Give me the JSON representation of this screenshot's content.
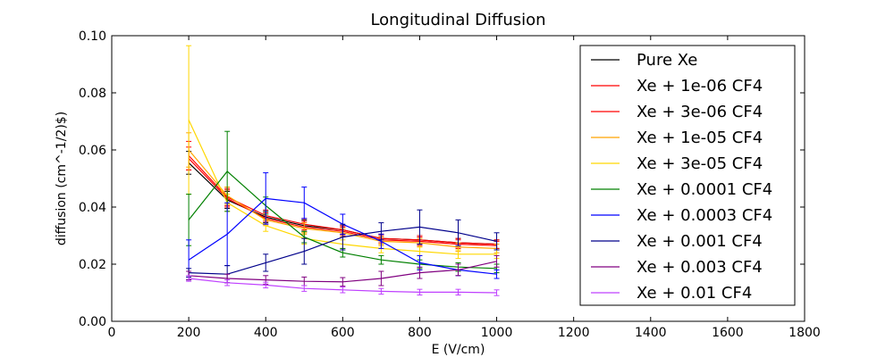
{
  "chart_data": {
    "type": "line",
    "title": "Longitudinal Diffusion",
    "xlabel": "E (V/cm)",
    "ylabel": "diffusion (cm^-1/2)$)",
    "xlim": [
      0,
      1800
    ],
    "ylim": [
      0.0,
      0.1
    ],
    "xticks": [
      "0",
      "200",
      "400",
      "600",
      "800",
      "1000",
      "1200",
      "1400",
      "1600",
      "1800"
    ],
    "yticks": [
      "0.00",
      "0.02",
      "0.04",
      "0.06",
      "0.08",
      "0.10"
    ],
    "grid": false,
    "legend_position": "top-right",
    "x": [
      200,
      300,
      400,
      500,
      600,
      700,
      800,
      900,
      1000
    ],
    "series": [
      {
        "name": "Pure Xe",
        "color": "#000000",
        "values": [
          0.0555,
          0.0425,
          0.0365,
          0.0335,
          0.032,
          0.029,
          0.0285,
          0.0275,
          0.027
        ],
        "errors": [
          0.004,
          0.003,
          0.002,
          0.002,
          0.0015,
          0.0015,
          0.0015,
          0.0015,
          0.0015
        ]
      },
      {
        "name": "Xe + 1e-06 CF4",
        "color": "#ff0000",
        "values": [
          0.057,
          0.043,
          0.036,
          0.033,
          0.0315,
          0.0285,
          0.028,
          0.027,
          0.0265
        ],
        "errors": [
          0.004,
          0.003,
          0.002,
          0.002,
          0.0015,
          0.0015,
          0.0015,
          0.0015,
          0.0015
        ]
      },
      {
        "name": "Xe + 3e-06 CF4",
        "color": "#ff0000",
        "values": [
          0.058,
          0.0435,
          0.037,
          0.034,
          0.032,
          0.029,
          0.0285,
          0.0275,
          0.027
        ],
        "errors": [
          0.005,
          0.003,
          0.002,
          0.002,
          0.0015,
          0.0015,
          0.0015,
          0.0015,
          0.0015
        ]
      },
      {
        "name": "Xe + 1e-05 CF4",
        "color": "#ffa500",
        "values": [
          0.06,
          0.044,
          0.0355,
          0.0325,
          0.031,
          0.028,
          0.0275,
          0.026,
          0.0255
        ],
        "errors": [
          0.006,
          0.003,
          0.002,
          0.002,
          0.0015,
          0.0015,
          0.0015,
          0.0015,
          0.0015
        ]
      },
      {
        "name": "Xe + 3e-05 CF4",
        "color": "#ffd700",
        "values": [
          0.0705,
          0.0415,
          0.0335,
          0.029,
          0.027,
          0.0255,
          0.0245,
          0.0235,
          0.0235
        ],
        "errors": [
          0.026,
          0.003,
          0.002,
          0.002,
          0.0015,
          0.0015,
          0.0015,
          0.0015,
          0.0015
        ]
      },
      {
        "name": "Xe + 0.0001 CF4",
        "color": "#008000",
        "values": [
          0.0355,
          0.0525,
          0.0405,
          0.0295,
          0.024,
          0.0215,
          0.02,
          0.019,
          0.0185
        ],
        "errors": [
          0.009,
          0.014,
          0.003,
          0.002,
          0.0015,
          0.0015,
          0.0015,
          0.0015,
          0.0015
        ]
      },
      {
        "name": "Xe + 0.0003 CF4",
        "color": "#0000ff",
        "values": [
          0.0215,
          0.0305,
          0.043,
          0.0415,
          0.034,
          0.028,
          0.0205,
          0.018,
          0.0165
        ],
        "errors": [
          0.007,
          0.011,
          0.009,
          0.0055,
          0.0035,
          0.0025,
          0.0025,
          0.002,
          0.0015
        ]
      },
      {
        "name": "Xe + 0.001 CF4",
        "color": "#00008b",
        "values": [
          0.017,
          0.0165,
          0.0205,
          0.0245,
          0.0295,
          0.0315,
          0.033,
          0.031,
          0.028
        ],
        "errors": [
          0.0015,
          0.003,
          0.003,
          0.0045,
          0.0045,
          0.003,
          0.006,
          0.0045,
          0.003
        ]
      },
      {
        "name": "Xe + 0.003 CF4",
        "color": "#800080",
        "values": [
          0.016,
          0.015,
          0.0145,
          0.014,
          0.0138,
          0.015,
          0.017,
          0.018,
          0.021
        ],
        "errors": [
          0.0015,
          0.0015,
          0.0015,
          0.0015,
          0.0015,
          0.0025,
          0.002,
          0.002,
          0.002
        ]
      },
      {
        "name": "Xe + 0.01 CF4",
        "color": "#bf40ff",
        "values": [
          0.015,
          0.0135,
          0.0127,
          0.0115,
          0.011,
          0.0105,
          0.0102,
          0.0102,
          0.01
        ],
        "errors": [
          0.001,
          0.001,
          0.001,
          0.001,
          0.001,
          0.001,
          0.001,
          0.001,
          0.001
        ]
      }
    ]
  }
}
